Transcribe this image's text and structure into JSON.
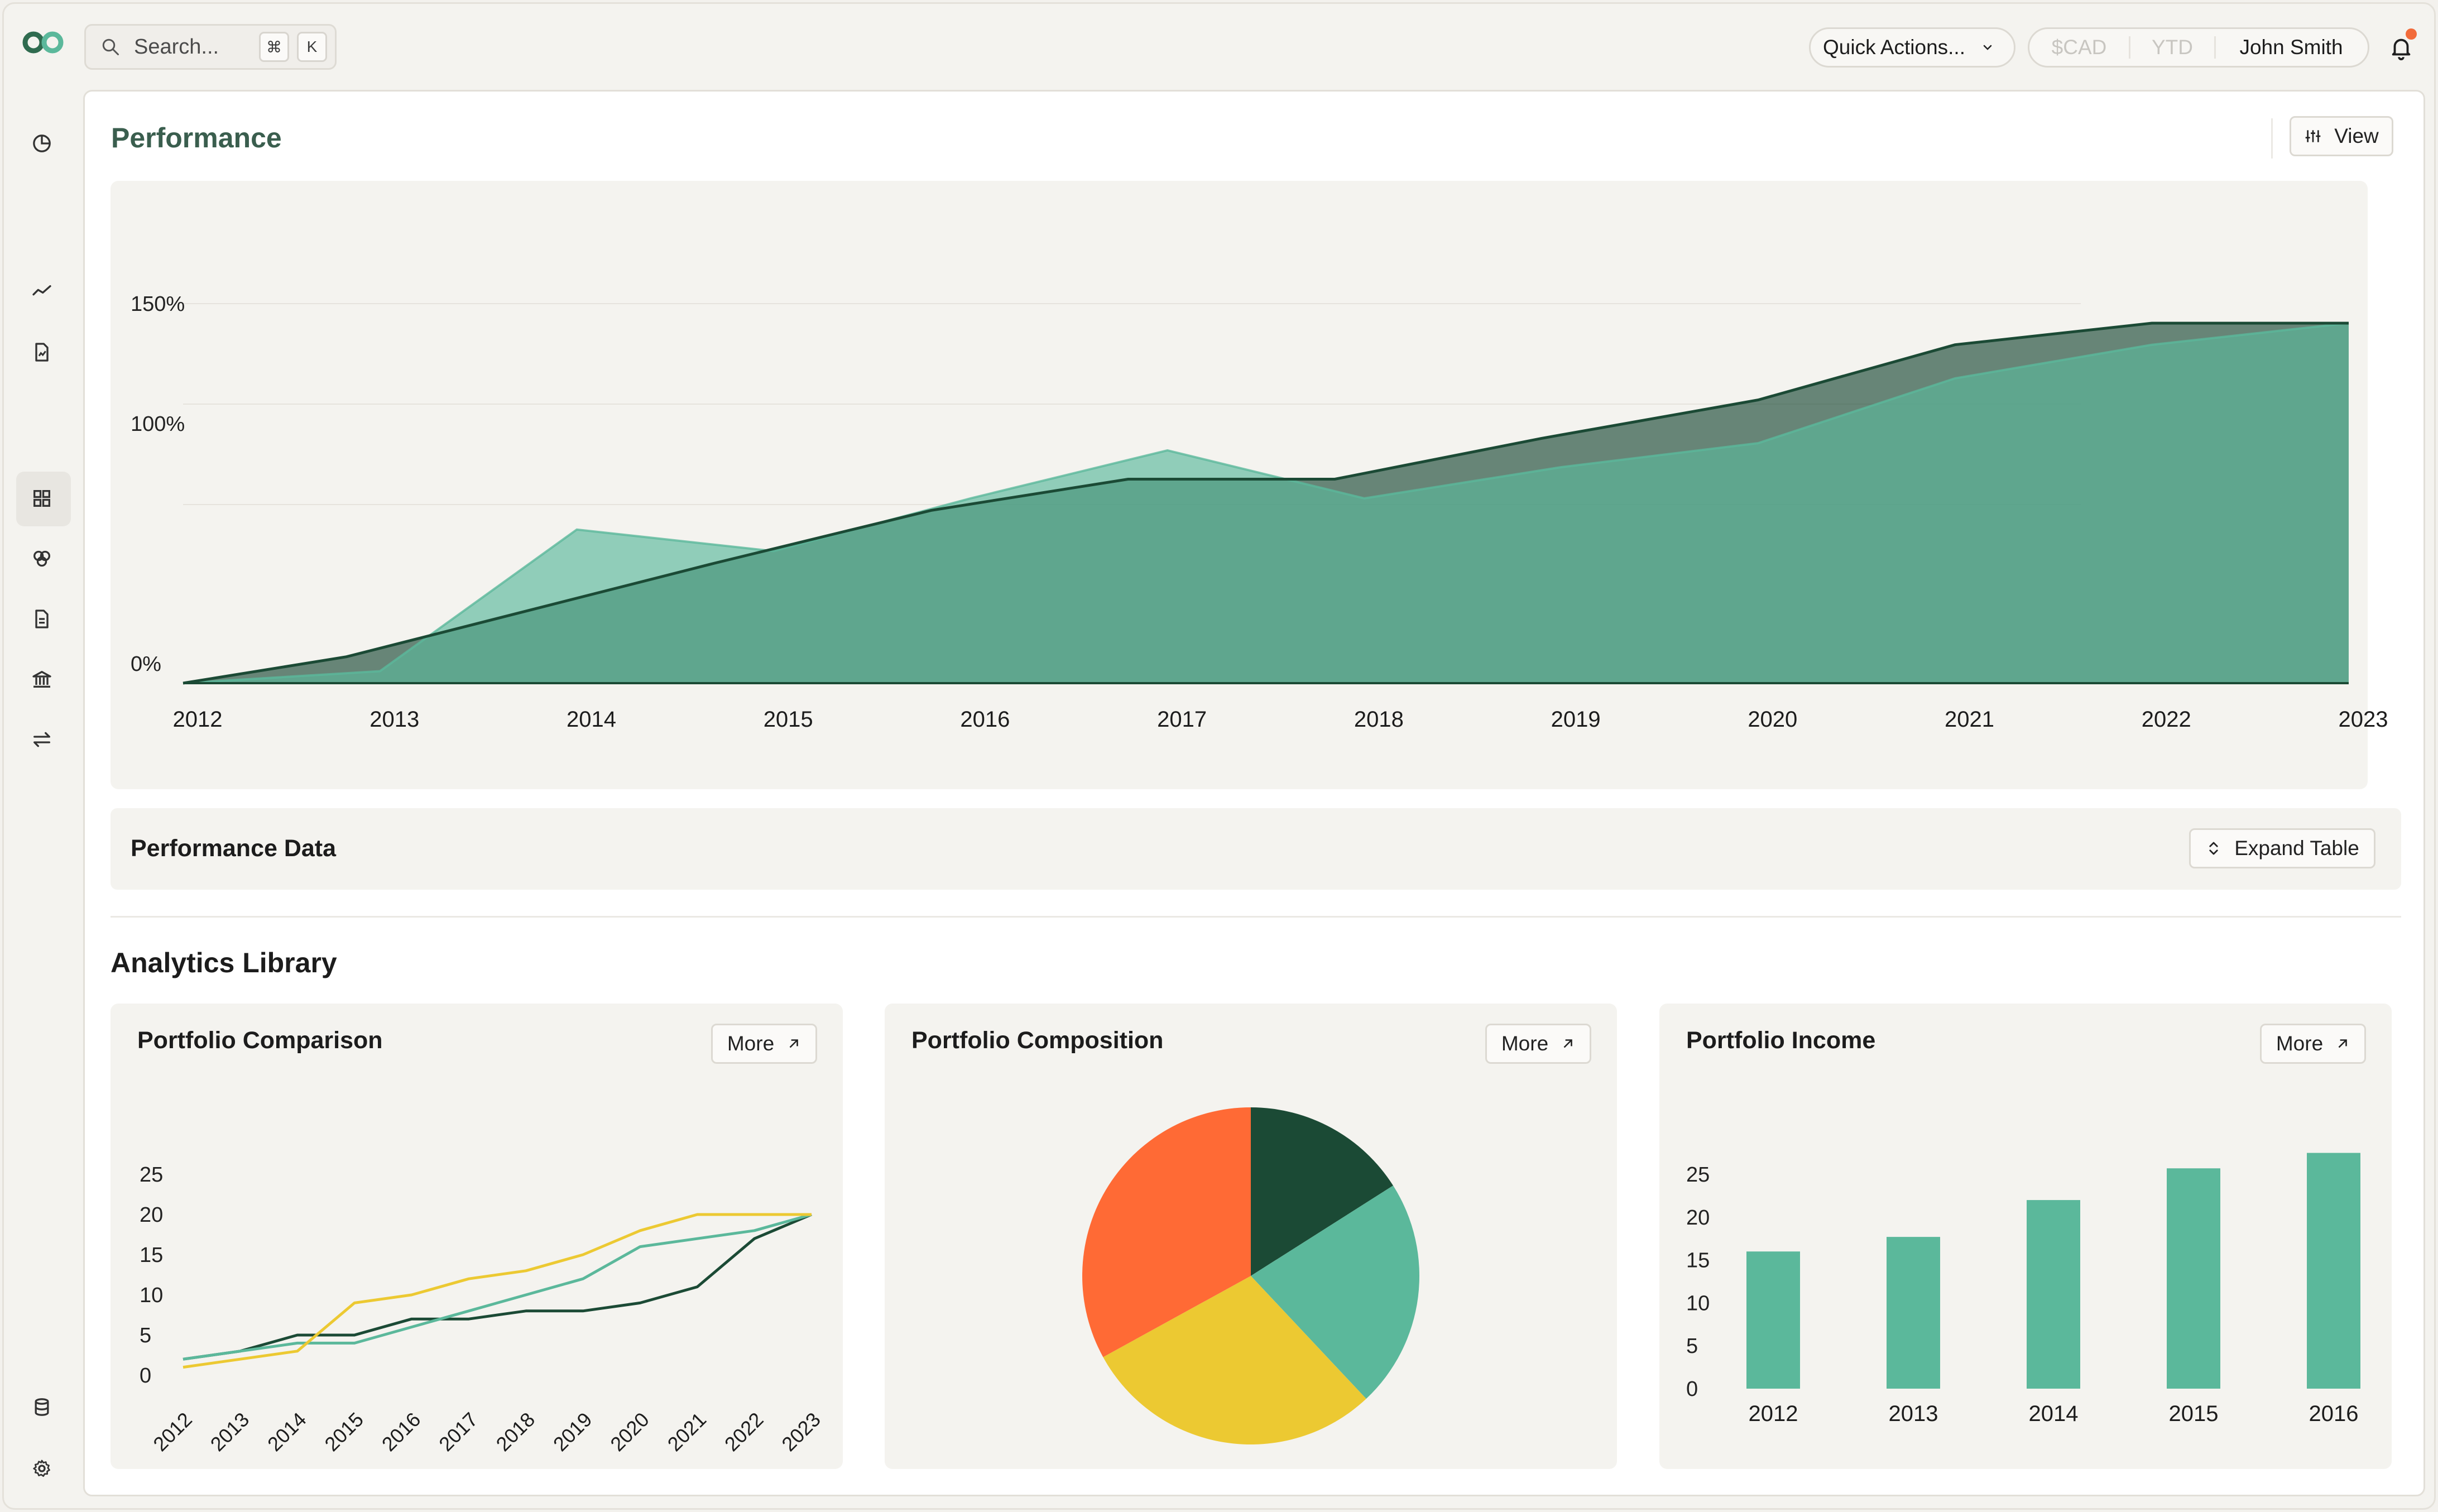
{
  "topbar": {
    "search_placeholder": "Search...",
    "shortcut_keys": [
      "⌘",
      "K"
    ],
    "quick_actions_label": "Quick Actions...",
    "currency": "$CAD",
    "period": "YTD",
    "user_name": "John Smith"
  },
  "sidebar": {
    "items": [
      {
        "icon": "pie-chart-icon"
      },
      {
        "icon": "trend-line-icon"
      },
      {
        "icon": "report-icon"
      },
      {
        "icon": "grid-icon",
        "active": true
      },
      {
        "icon": "circles-icon"
      },
      {
        "icon": "document-icon"
      },
      {
        "icon": "bank-icon"
      },
      {
        "icon": "transfer-icon"
      }
    ],
    "bottom": [
      {
        "icon": "database-icon"
      },
      {
        "icon": "gear-icon"
      }
    ]
  },
  "performance": {
    "title": "Performance",
    "view_label": "View"
  },
  "performance_data": {
    "title": "Performance Data",
    "expand_label": "Expand Table"
  },
  "analytics": {
    "title": "Analytics Library",
    "comparison_title": "Portfolio Comparison",
    "composition_title": "Portfolio Composition",
    "income_title": "Portfolio Income",
    "more_label": "More"
  },
  "colors": {
    "dark_green": "#1b4a35",
    "teal": "#5bb89b",
    "yellow": "#ecc932",
    "orange": "#ff6a35"
  },
  "chart_data": [
    {
      "type": "area",
      "x": [
        "2012",
        "2013",
        "2014",
        "2015",
        "2016",
        "2017",
        "2018",
        "2019",
        "2020",
        "2021",
        "2022",
        "2023"
      ],
      "ylim": [
        0,
        180
      ],
      "yticks": [
        0,
        100,
        150
      ],
      "ytick_labels": [
        "0%",
        "100%",
        "150%"
      ],
      "series": [
        {
          "color": "#1b4a35",
          "points": [
            [
              2012,
              0
            ],
            [
              2012.83,
              11
            ],
            [
              2014.7,
              50
            ],
            [
              2015.8,
              72
            ],
            [
              2016.8,
              85
            ],
            [
              2017.85,
              85
            ],
            [
              2018.9,
              102
            ],
            [
              2020,
              118
            ],
            [
              2021,
              141
            ],
            [
              2022,
              150
            ],
            [
              2023,
              150
            ]
          ]
        },
        {
          "color": "#5bb89b",
          "points": [
            [
              2012,
              0
            ],
            [
              2013,
              5
            ],
            [
              2014,
              64
            ],
            [
              2015,
              55
            ],
            [
              2016,
              77
            ],
            [
              2017,
              97
            ],
            [
              2018,
              77
            ],
            [
              2019,
              90
            ],
            [
              2020,
              100
            ],
            [
              2021,
              127
            ],
            [
              2022,
              141
            ],
            [
              2023,
              150
            ]
          ]
        }
      ]
    },
    {
      "type": "line",
      "x": [
        "2012",
        "2013",
        "2014",
        "2015",
        "2016",
        "2017",
        "2018",
        "2019",
        "2020",
        "2021",
        "2022",
        "2023"
      ],
      "ylim": [
        0,
        25
      ],
      "yticks": [
        0,
        5,
        10,
        15,
        20,
        25
      ],
      "series": [
        {
          "color": "#1b4a35",
          "values": [
            2,
            3,
            5,
            5,
            7,
            7,
            8,
            8,
            9,
            11,
            17,
            20
          ]
        },
        {
          "color": "#5bb89b",
          "values": [
            2,
            3,
            4,
            4,
            6,
            8,
            10,
            12,
            16,
            17,
            18,
            20
          ]
        },
        {
          "color": "#ecc932",
          "values": [
            1,
            2,
            3,
            9,
            10,
            12,
            13,
            15,
            18,
            20,
            20,
            20
          ]
        }
      ]
    },
    {
      "type": "pie",
      "slices": [
        {
          "value": 16,
          "color": "#1b4a35"
        },
        {
          "value": 22,
          "color": "#5bb89b"
        },
        {
          "value": 29,
          "color": "#ecc932"
        },
        {
          "value": 33,
          "color": "#ff6a35"
        }
      ]
    },
    {
      "type": "bar",
      "categories": [
        "2012",
        "2013",
        "2014",
        "2015",
        "2016"
      ],
      "values": [
        16,
        17.7,
        22,
        25.7,
        27.5
      ],
      "ylim": [
        0,
        25
      ],
      "yticks": [
        0,
        5,
        10,
        15,
        20,
        25
      ],
      "color": "#5bb89b"
    }
  ]
}
